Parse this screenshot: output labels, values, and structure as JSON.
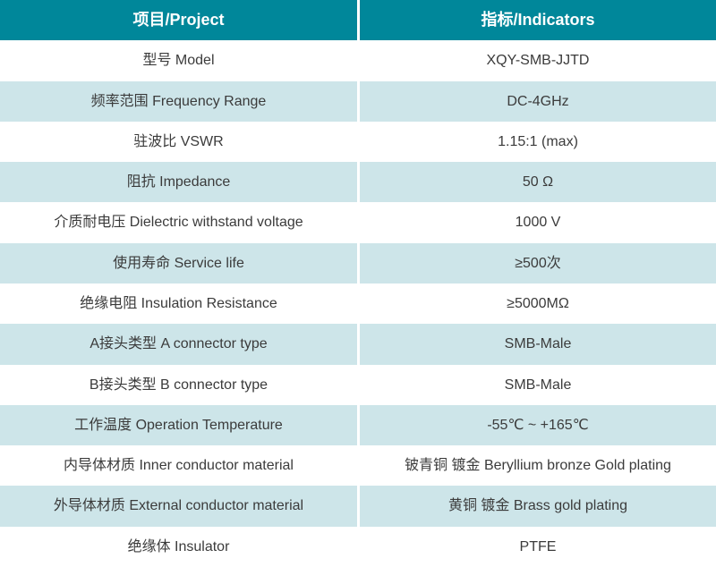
{
  "table": {
    "header": {
      "project": "项目/Project",
      "indicator": "指标/Indicators"
    },
    "rows": [
      {
        "project": "型号 Model",
        "indicator": "XQY-SMB-JJTD"
      },
      {
        "project": "频率范围 Frequency Range",
        "indicator": "DC-4GHz"
      },
      {
        "project": "驻波比 VSWR",
        "indicator": "1.15:1 (max)"
      },
      {
        "project": "阻抗 Impedance",
        "indicator": "50 Ω"
      },
      {
        "project": "介质耐电压 Dielectric withstand voltage",
        "indicator": "1000 V"
      },
      {
        "project": "使用寿命 Service life",
        "indicator": "≥500次"
      },
      {
        "project": "绝缘电阻 Insulation Resistance",
        "indicator": "≥5000MΩ"
      },
      {
        "project": "A接头类型 A connector type",
        "indicator": "SMB-Male"
      },
      {
        "project": "B接头类型 B connector type",
        "indicator": "SMB-Male"
      },
      {
        "project": "工作温度 Operation Temperature",
        "indicator": "-55℃ ~ +165℃"
      },
      {
        "project": "内导体材质 Inner conductor material",
        "indicator": "铍青铜 镀金 Beryllium bronze Gold plating"
      },
      {
        "project": "外导体材质 External conductor material",
        "indicator": "黄铜 镀金 Brass gold plating"
      },
      {
        "project": "绝缘体 Insulator",
        "indicator": "PTFE"
      }
    ]
  },
  "colors": {
    "header-bg": "#00879a",
    "header-text": "#ffffff",
    "row-alt-bg": "#cde5e9",
    "body-text": "#3b3b3b",
    "divider": "#ffffff"
  }
}
